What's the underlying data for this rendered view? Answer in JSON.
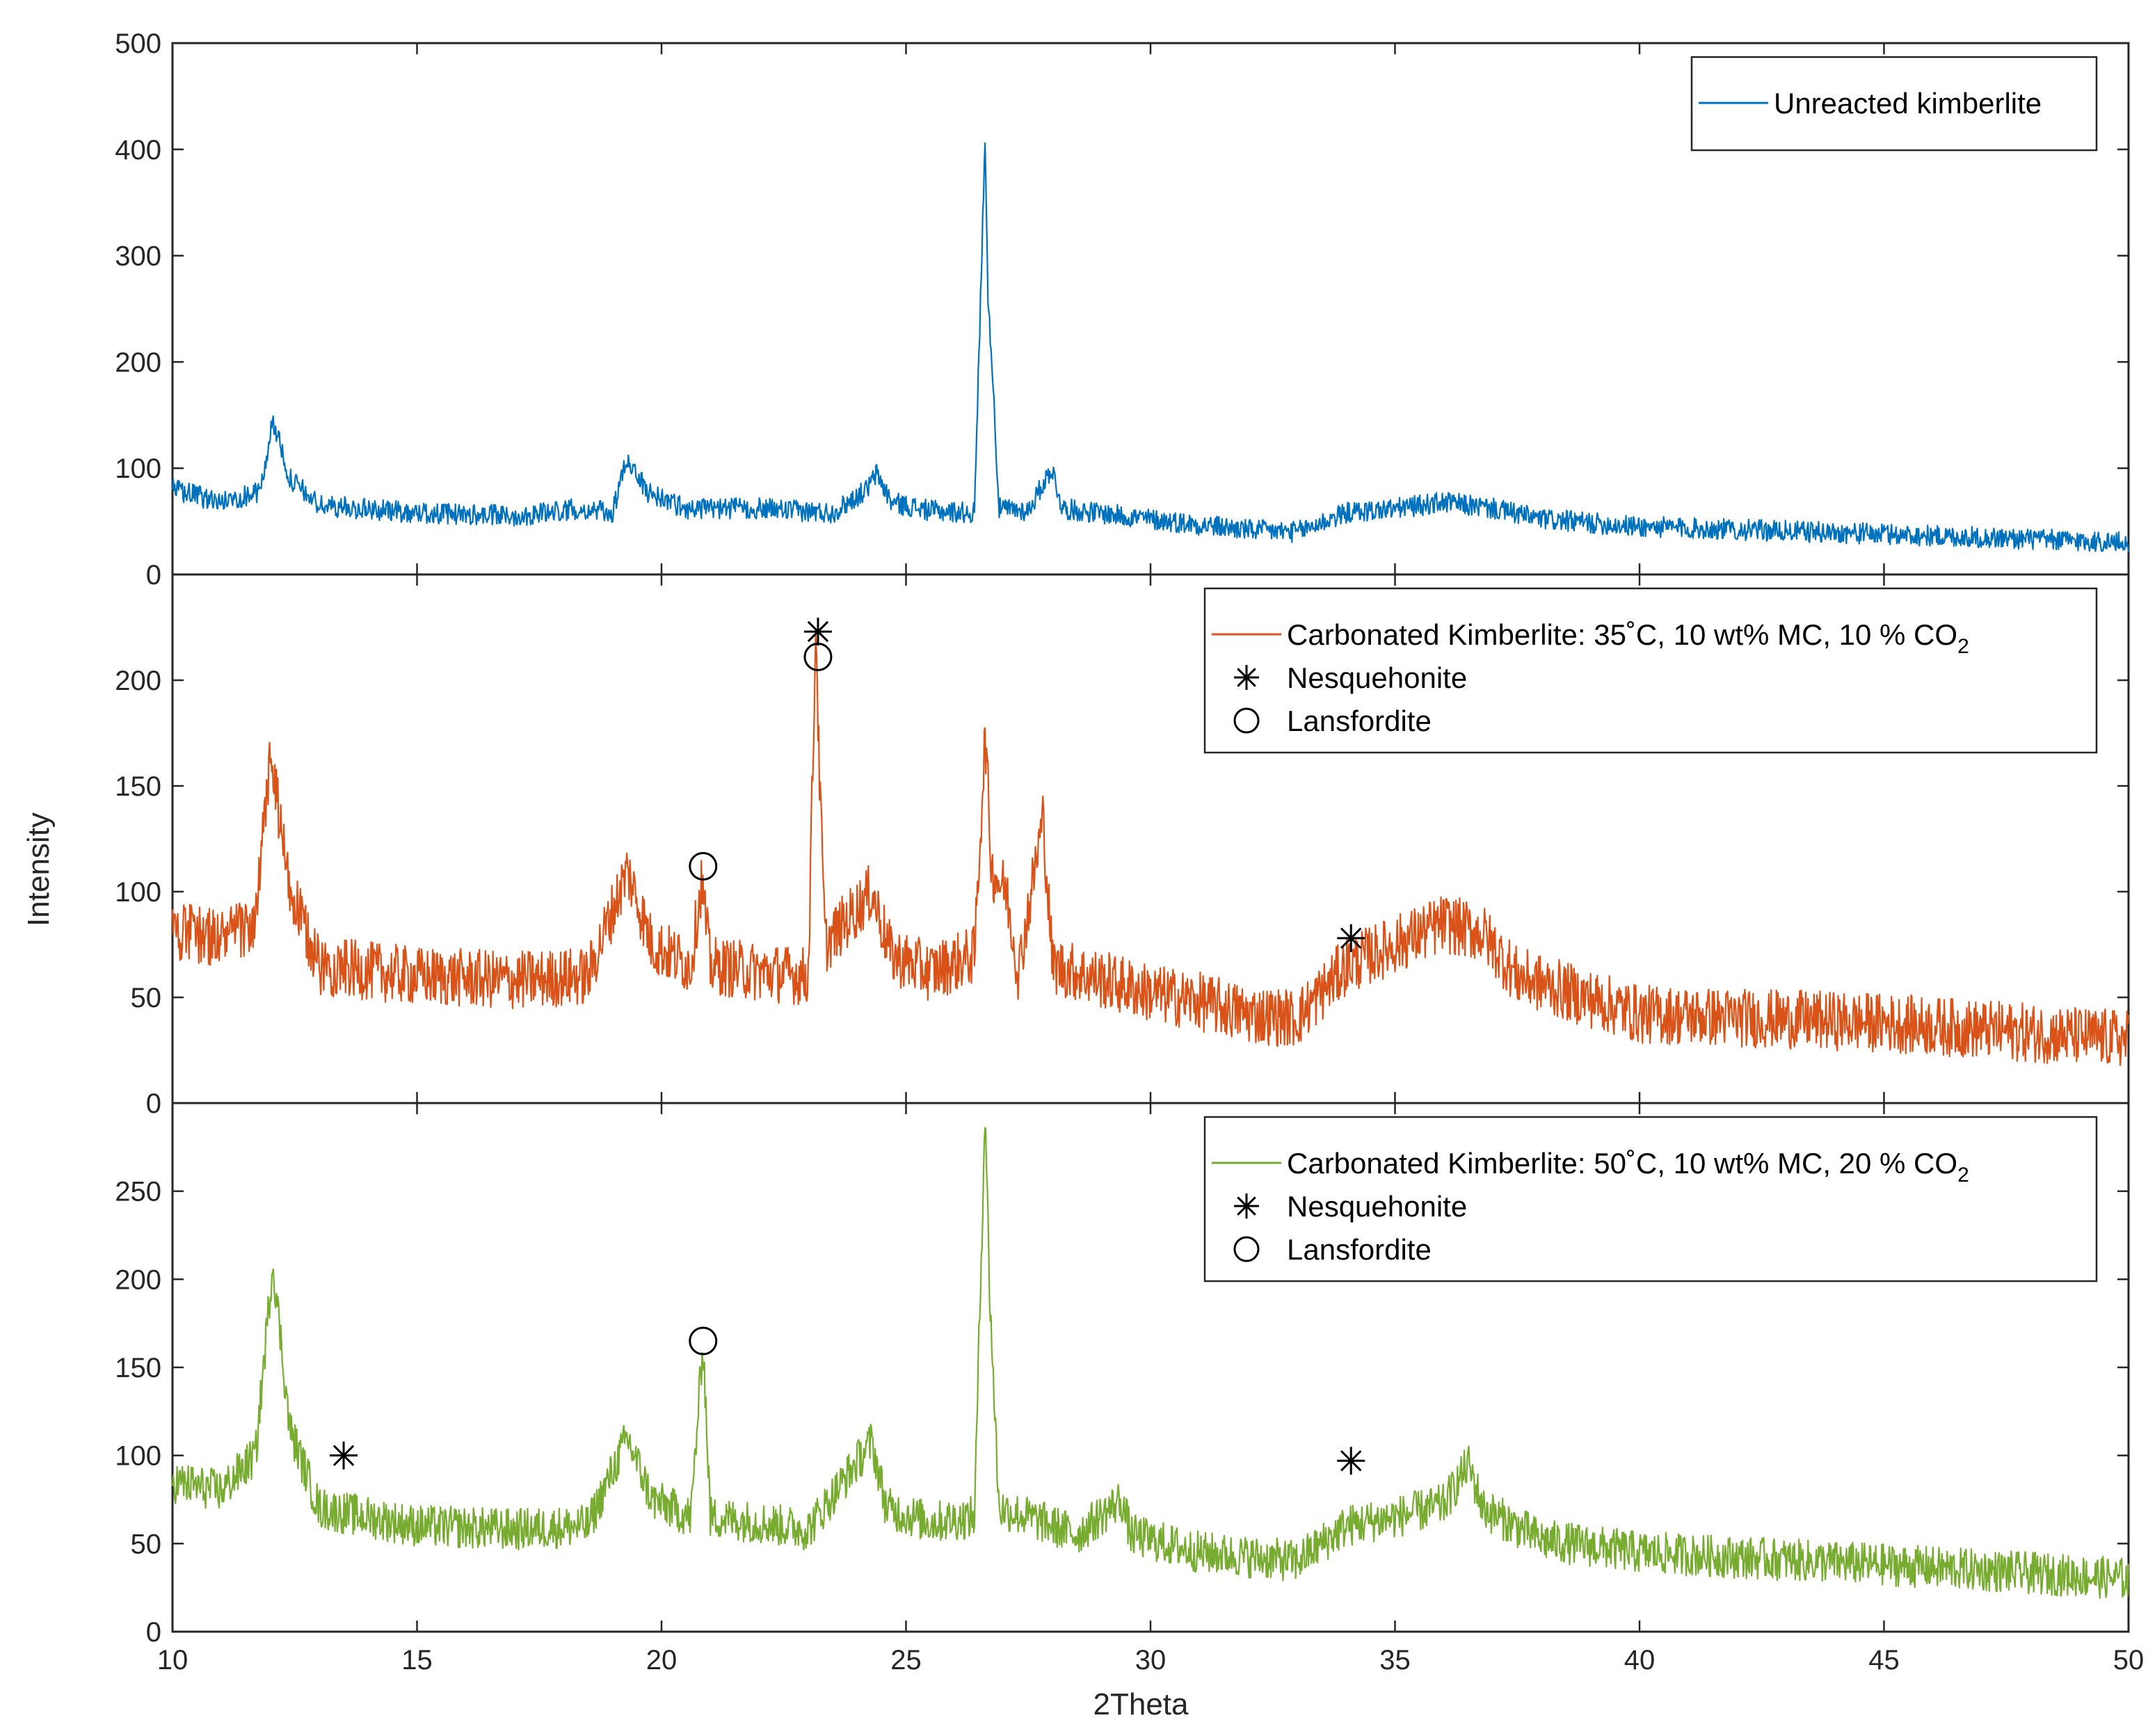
{
  "chart_data": {
    "type": "line",
    "xlabel": "2Theta",
    "ylabel": "Intensity",
    "xlim": [
      10,
      50
    ],
    "xticks": [
      10,
      15,
      20,
      25,
      30,
      35,
      40,
      45,
      50
    ],
    "xtick_labels": [
      "10",
      "15",
      "20",
      "25",
      "30",
      "35",
      "40",
      "45",
      "50"
    ],
    "panels": [
      {
        "id": "unreacted",
        "ylim": [
          0,
          500
        ],
        "yticks": [
          0,
          100,
          200,
          300,
          400,
          500
        ],
        "ytick_labels": [
          "0",
          "100",
          "200",
          "300",
          "400",
          "500"
        ],
        "series": {
          "name": "Unreacted kimberlite",
          "color": "#0072BD",
          "profile": [
            [
              10,
              80
            ],
            [
              11,
              68
            ],
            [
              11.8,
              78
            ],
            [
              12.05,
              145
            ],
            [
              12.4,
              90
            ],
            [
              13,
              65
            ],
            [
              15,
              58
            ],
            [
              17,
              55
            ],
            [
              18.3,
              62
            ],
            [
              19,
              58
            ],
            [
              19.3,
              110
            ],
            [
              19.7,
              78
            ],
            [
              20.5,
              62
            ],
            [
              22,
              62
            ],
            [
              23.5,
              58
            ],
            [
              24.2,
              80
            ],
            [
              24.4,
              95
            ],
            [
              24.7,
              68
            ],
            [
              25.5,
              60
            ],
            [
              26.4,
              58
            ],
            [
              26.62,
              415
            ],
            [
              26.68,
              250
            ],
            [
              26.75,
              210
            ],
            [
              26.9,
              62
            ],
            [
              27.5,
              60
            ],
            [
              27.98,
              100
            ],
            [
              28.2,
              62
            ],
            [
              30,
              52
            ],
            [
              32,
              42
            ],
            [
              33,
              40
            ],
            [
              34,
              58
            ],
            [
              35,
              62
            ],
            [
              36,
              68
            ],
            [
              37,
              62
            ],
            [
              38,
              52
            ],
            [
              40,
              45
            ],
            [
              45,
              38
            ],
            [
              50,
              30
            ]
          ],
          "noise": 10
        },
        "markers": [],
        "legend": [
          {
            "kind": "line",
            "label": "Unreacted kimberlite"
          }
        ]
      },
      {
        "id": "carbonated-35c",
        "ylim": [
          0,
          250
        ],
        "yticks": [
          0,
          50,
          100,
          150,
          200
        ],
        "ytick_labels": [
          "0",
          "50",
          "100",
          "150",
          "200"
        ],
        "series": {
          "name": "Carbonated Kimberlite: 35˚C, 10 wt% MC, 10 % CO2",
          "color": "#D95319",
          "profile": [
            [
              10,
              82
            ],
            [
              11,
              78
            ],
            [
              11.7,
              85
            ],
            [
              12,
              165
            ],
            [
              12.4,
              100
            ],
            [
              13,
              65
            ],
            [
              15,
              60
            ],
            [
              17,
              58
            ],
            [
              18.5,
              60
            ],
            [
              19.3,
              110
            ],
            [
              19.8,
              75
            ],
            [
              20.6,
              65
            ],
            [
              20.82,
              105
            ],
            [
              21,
              65
            ],
            [
              22,
              62
            ],
            [
              23,
              60
            ],
            [
              23.16,
              230
            ],
            [
              23.22,
              160
            ],
            [
              23.35,
              75
            ],
            [
              24.3,
              100
            ],
            [
              24.7,
              70
            ],
            [
              25.5,
              62
            ],
            [
              26.4,
              70
            ],
            [
              26.62,
              175
            ],
            [
              26.75,
              110
            ],
            [
              27.05,
              100
            ],
            [
              27.3,
              62
            ],
            [
              27.8,
              135
            ],
            [
              28,
              65
            ],
            [
              30,
              52
            ],
            [
              31,
              48
            ],
            [
              32,
              42
            ],
            [
              33,
              40
            ],
            [
              34,
              65
            ],
            [
              35,
              75
            ],
            [
              36,
              85
            ],
            [
              36.8,
              80
            ],
            [
              37.5,
              60
            ],
            [
              40,
              42
            ],
            [
              45,
              38
            ],
            [
              50,
              30
            ]
          ],
          "noise": 14
        },
        "markers": [
          {
            "symbol": "asterisk",
            "label": "Nesquehonite",
            "x": 23.2,
            "y": 223
          },
          {
            "symbol": "circle",
            "label": "Lansfordite",
            "x": 23.2,
            "y": 211
          },
          {
            "symbol": "circle",
            "label": "Lansfordite",
            "x": 20.85,
            "y": 112
          },
          {
            "symbol": "asterisk",
            "label": "Nesquehonite",
            "x": 34.1,
            "y": 78
          }
        ],
        "legend": [
          {
            "kind": "line",
            "label": "Carbonated Kimberlite: 35˚C, 10 wt% MC, 10 % CO",
            "subscript": "2"
          },
          {
            "kind": "asterisk",
            "label": "Nesquehonite"
          },
          {
            "kind": "circle",
            "label": "Lansfordite"
          }
        ]
      },
      {
        "id": "carbonated-50c",
        "ylim": [
          0,
          300
        ],
        "yticks": [
          0,
          50,
          100,
          150,
          200,
          250
        ],
        "ytick_labels": [
          "0",
          "50",
          "100",
          "150",
          "200",
          "250"
        ],
        "series": {
          "name": "Carbonated Kimberlite: 50˚C, 10 wt% MC, 20 % CO2",
          "color": "#77AC30",
          "profile": [
            [
              10,
              85
            ],
            [
              11,
              80
            ],
            [
              11.7,
              100
            ],
            [
              12.05,
              210
            ],
            [
              12.4,
              115
            ],
            [
              13,
              70
            ],
            [
              15,
              60
            ],
            [
              17,
              58
            ],
            [
              18.5,
              60
            ],
            [
              19.3,
              110
            ],
            [
              19.8,
              75
            ],
            [
              20.6,
              65
            ],
            [
              20.85,
              165
            ],
            [
              21,
              65
            ],
            [
              22,
              62
            ],
            [
              23,
              58
            ],
            [
              24.3,
              108
            ],
            [
              24.6,
              70
            ],
            [
              25.5,
              62
            ],
            [
              26.4,
              65
            ],
            [
              26.62,
              300
            ],
            [
              26.7,
              200
            ],
            [
              26.9,
              70
            ],
            [
              27.5,
              65
            ],
            [
              28.5,
              55
            ],
            [
              29.4,
              75
            ],
            [
              29.6,
              55
            ],
            [
              31,
              45
            ],
            [
              33,
              40
            ],
            [
              34,
              60
            ],
            [
              35,
              65
            ],
            [
              36,
              72
            ],
            [
              36.5,
              95
            ],
            [
              36.8,
              70
            ],
            [
              38,
              52
            ],
            [
              40,
              45
            ],
            [
              45,
              38
            ],
            [
              50,
              30
            ]
          ],
          "noise": 12
        },
        "markers": [
          {
            "symbol": "asterisk",
            "label": "Nesquehonite",
            "x": 13.5,
            "y": 100
          },
          {
            "symbol": "circle",
            "label": "Lansfordite",
            "x": 20.85,
            "y": 165
          },
          {
            "symbol": "asterisk",
            "label": "Nesquehonite",
            "x": 34.1,
            "y": 97
          }
        ],
        "legend": [
          {
            "kind": "line",
            "label": "Carbonated Kimberlite: 50˚C, 10 wt% MC, 20 % CO",
            "subscript": "2"
          },
          {
            "kind": "asterisk",
            "label": "Nesquehonite"
          },
          {
            "kind": "circle",
            "label": "Lansfordite"
          }
        ]
      }
    ]
  }
}
